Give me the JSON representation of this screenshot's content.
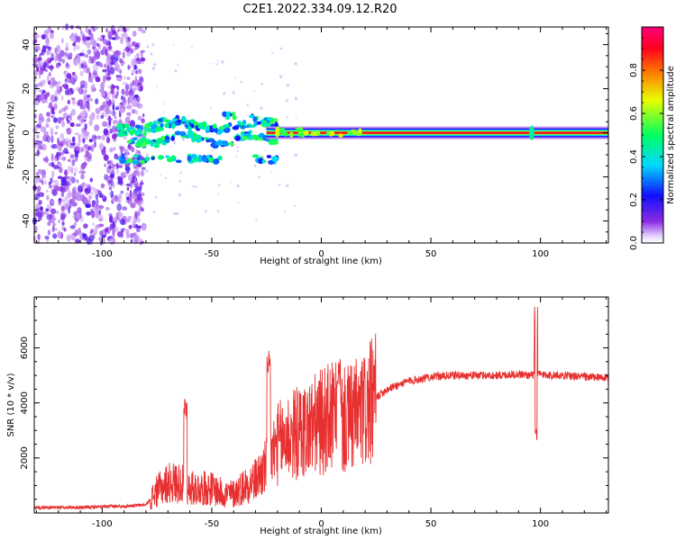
{
  "title": "C2E1.2022.334.09.12.R20",
  "colors": {
    "snr_line": "#e83030",
    "axis": "#000000",
    "background": "#ffffff"
  },
  "chart_data": [
    {
      "type": "heatmap",
      "title": "C2E1.2022.334.09.12.R20",
      "xlabel": "Height of straight line (km)",
      "ylabel": "Frequency (Hz)",
      "xlim": [
        -131,
        131
      ],
      "ylim": [
        -50,
        48
      ],
      "x_ticks": [
        -100,
        -50,
        0,
        50,
        100
      ],
      "x_tick_labels": [
        "-100",
        "-50",
        "0",
        "50",
        "100"
      ],
      "y_ticks": [
        -40,
        -20,
        0,
        20,
        40
      ],
      "y_tick_labels": [
        "-40",
        "-20",
        "0",
        "20",
        "40"
      ],
      "grid": false,
      "colorbar": {
        "label": "Normalized spectral amplitude",
        "colormap": "rainbow-white-to-magenta",
        "range": [
          0,
          1
        ],
        "ticks": [
          0.0,
          0.2,
          0.4,
          0.6,
          0.8
        ],
        "tick_labels": [
          "0.0",
          "0.2",
          "0.4",
          "0.6",
          "0.8"
        ]
      },
      "features": {
        "noise_region_x": [
          -131,
          -81
        ],
        "carrier_x_start": -25,
        "carrier_frequency": 0,
        "carrier_amplitude": 0.9,
        "spike_height": 96
      }
    },
    {
      "type": "line",
      "xlabel": "Height of straight line (km)",
      "ylabel": "SNR (10 * v/v)",
      "xlim": [
        -131,
        131
      ],
      "ylim": [
        0,
        7850
      ],
      "x_ticks": [
        -100,
        -50,
        0,
        50,
        100
      ],
      "x_tick_labels": [
        "-100",
        "-50",
        "0",
        "50",
        "100"
      ],
      "y_ticks": [
        2000,
        4000,
        6000
      ],
      "y_tick_labels": [
        "2000",
        "4000",
        "6000"
      ],
      "grid": false,
      "series": [
        {
          "x": [
            -131,
            -110,
            -90,
            -80,
            -75,
            -70,
            -65,
            -60,
            -55,
            -50,
            -45,
            -40,
            -35,
            -30,
            -25,
            -20,
            -15,
            -10,
            -5,
            0,
            5,
            10,
            15,
            20,
            25,
            30,
            40,
            50,
            60,
            70,
            80,
            90,
            95,
            100,
            105,
            110,
            120,
            131
          ],
          "y": [
            200,
            200,
            250,
            300,
            800,
            1100,
            1100,
            900,
            900,
            900,
            700,
            700,
            1000,
            1200,
            1700,
            2500,
            2800,
            2900,
            3100,
            3300,
            3500,
            3300,
            3500,
            3700,
            4200,
            4500,
            4800,
            4950,
            5000,
            5000,
            5000,
            5050,
            5000,
            5050,
            5000,
            5000,
            4950,
            4900
          ]
        }
      ],
      "annotations": {
        "peaks": [
          {
            "x": -62,
            "y": 4200
          },
          {
            "x": -24,
            "y": 5900
          },
          {
            "x": 8,
            "y": 5700
          },
          {
            "x": 98,
            "y": 7700
          }
        ],
        "dips": [
          {
            "x": 98,
            "y": 2650
          }
        ]
      }
    }
  ]
}
